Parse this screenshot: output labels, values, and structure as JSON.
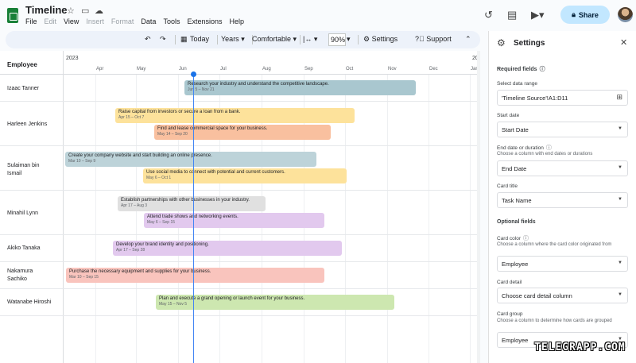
{
  "header": {
    "title": "Timeline",
    "menu": [
      "File",
      "Edit",
      "View",
      "Insert",
      "Format",
      "Data",
      "Tools",
      "Extensions",
      "Help"
    ],
    "share_label": "Share"
  },
  "toolbar": {
    "today": "Today",
    "years": "Years",
    "comfortable": "Comfortable",
    "zoom": "90%",
    "settings": "Settings",
    "support": "Support"
  },
  "timeline": {
    "employee_header": "Employee",
    "year_start": "2023",
    "year_end": "20",
    "months": [
      "Apr",
      "May",
      "Jun",
      "Jul",
      "Aug",
      "Sep",
      "Oct",
      "Nov",
      "Dec",
      "Jan"
    ],
    "rows": [
      {
        "label": "Izaac Tanner",
        "cards": [
          {
            "title": "Research your industry and understand the competitive landscape.",
            "dates": "Jun 5 – Nov 21",
            "color": "#a9c7cf"
          }
        ]
      },
      {
        "label": "Harleen Jenkins",
        "cards": [
          {
            "title": "Raise capital from investors or secure a loan from a bank.",
            "dates": "Apr 15 – Oct 7",
            "color": "#fde29b"
          },
          {
            "title": "Find and lease commercial space for your business.",
            "dates": "May 14 – Sep 20",
            "color": "#f9c09f"
          }
        ]
      },
      {
        "label": "Sulaiman bin Ismail",
        "cards": [
          {
            "title": "Create your company website and start building an online presence.",
            "dates": "Mar 10 – Sep 9",
            "color": "#bdd3d9"
          },
          {
            "title": "Use social media to connect with potential and current customers.",
            "dates": "May 6 – Oct 1",
            "color": "#fde29b"
          }
        ]
      },
      {
        "label": "Minahil Lynn",
        "cards": [
          {
            "title": "Establish partnerships with other businesses in your industry.",
            "dates": "Apr 17 – Aug 3",
            "color": "#e0e0e0"
          },
          {
            "title": "Attend trade shows and networking events.",
            "dates": "May 6 – Sep 15",
            "color": "#e2c9ee"
          }
        ]
      },
      {
        "label": "Akiko Tanaka",
        "cards": [
          {
            "title": "Develop your brand identity and positioning.",
            "dates": "Apr 17 – Sep 28",
            "color": "#e2c9ee"
          }
        ]
      },
      {
        "label": "Nakamura Sachiko",
        "cards": [
          {
            "title": "Purchase the necessary equipment and supplies for your business.",
            "dates": "Mar 10 – Sep 15",
            "color": "#f9c4bd"
          }
        ]
      },
      {
        "label": "Watanabe Hiroshi",
        "cards": [
          {
            "title": "Plan and execute a grand opening or launch event for your business.",
            "dates": "May 15 – Nov 5",
            "color": "#cde7b0"
          }
        ]
      }
    ]
  },
  "panel": {
    "title": "Settings",
    "required": "Required fields",
    "data_range_label": "Select data range",
    "data_range_value": "'Timeline Source'!A1:D11",
    "start_label": "Start date",
    "start_value": "Start Date",
    "end_label": "End date or duration",
    "end_hint": "Choose a column with end dates or durations",
    "end_value": "End Date",
    "card_title_label": "Card title",
    "card_title_value": "Task Name",
    "optional": "Optional fields",
    "card_color_label": "Card color",
    "card_color_hint": "Choose a column where the card color originated from",
    "card_color_value": "Employee",
    "card_detail_label": "Card detail",
    "card_detail_value": "Choose card detail column",
    "card_group_label": "Card group",
    "card_group_hint": "Choose a column to determine how cards are grouped",
    "card_group_value": "Employee"
  },
  "watermark": "TELEGRAPP.COM"
}
